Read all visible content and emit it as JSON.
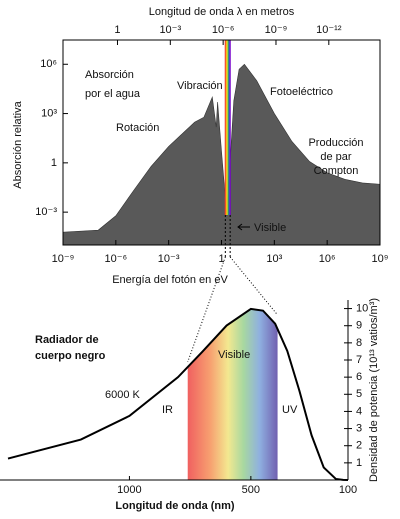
{
  "chart_data": [
    {
      "type": "area",
      "x2_label": "Longitud de onda λ en metros",
      "x_label": "Energía del fotón en eV",
      "y_label": "Absorción relativa",
      "xscale": "log",
      "yscale": "log",
      "xlim": [
        1e-09,
        1000000000.0
      ],
      "ylim": [
        1e-05,
        30000000.0
      ],
      "x2lim": [
        1240,
        1.24e-15
      ],
      "xticks": [
        {
          "value": 1e-09,
          "label": "10⁻⁹"
        },
        {
          "value": 1e-06,
          "label": "10⁻⁶"
        },
        {
          "value": 0.001,
          "label": "10⁻³"
        },
        1,
        {
          "value": 1000,
          "label": "10³"
        },
        {
          "value": 1000000,
          "label": "10⁶"
        },
        {
          "value": 1000000000,
          "label": "10⁹"
        }
      ],
      "x2ticks": [
        1,
        {
          "value": 0.001,
          "label": "10⁻³"
        },
        {
          "value": 1e-06,
          "label": "10⁻⁶"
        },
        {
          "value": 1e-09,
          "label": "10⁻⁹"
        },
        {
          "value": 1e-12,
          "label": "10⁻¹²"
        }
      ],
      "yticks": [
        {
          "value": 0.001,
          "label": "10⁻³"
        },
        1,
        {
          "value": 1000,
          "label": "10³"
        },
        {
          "value": 1000000,
          "label": "10⁶"
        }
      ],
      "color": "#595959",
      "x": [
        1e-09,
        1e-07,
        1e-06,
        1e-05,
        0.0001,
        0.001,
        0.01,
        0.03,
        0.1,
        0.3,
        0.5,
        0.6,
        1,
        2,
        5,
        10,
        20,
        100,
        1000,
        10000,
        100000,
        1000000,
        10000000,
        100000000,
        1000000000
      ],
      "values": [
        6e-05,
        8e-05,
        0.0006,
        0.02,
        0.6,
        10,
        100,
        300,
        600,
        10000,
        150,
        5000,
        5,
        0.0006,
        6000,
        500000,
        1000000,
        100000,
        1000,
        20,
        1.2,
        0.25,
        0.1,
        0.06,
        0.05
      ],
      "shaded_range": [
        1.65,
        3.1
      ],
      "annotations": [
        [
          "Absorción",
          "por el agua"
        ],
        [
          "Vibración"
        ],
        [
          "Rotación"
        ],
        [
          "Fotoeléctrico"
        ],
        [
          "Producción",
          "de par",
          "Compton"
        ],
        [
          "Visible"
        ]
      ]
    },
    {
      "type": "line",
      "x_label": "Longitud de onda (nm)",
      "y_label": "Densidad de potencia (10¹³ vatios/m³)",
      "xlim": [
        1500,
        100
      ],
      "ylim": [
        0,
        10.5
      ],
      "xticks": [
        1000,
        500,
        100
      ],
      "yticks": [
        1,
        2,
        3,
        4,
        5,
        6,
        7,
        8,
        9,
        10
      ],
      "yaxis_side": "right",
      "color": "#000000",
      "x": [
        1500,
        1200,
        1000,
        800,
        700,
        600,
        500,
        450,
        400,
        350,
        300,
        250,
        200,
        150,
        120,
        100
      ],
      "values": [
        1.25,
        2.36,
        3.74,
        6.0,
        7.48,
        9.01,
        9.98,
        9.88,
        9.12,
        7.53,
        5.2,
        2.61,
        0.73,
        0.06,
        0.01,
        0
      ],
      "shaded_range": [
        760,
        390
      ],
      "annotations": [
        [
          "Radiador de",
          "cuerpo negro"
        ],
        [
          "6000 K"
        ],
        [
          "IR"
        ],
        [
          "Visible"
        ],
        [
          "UV"
        ]
      ]
    }
  ]
}
